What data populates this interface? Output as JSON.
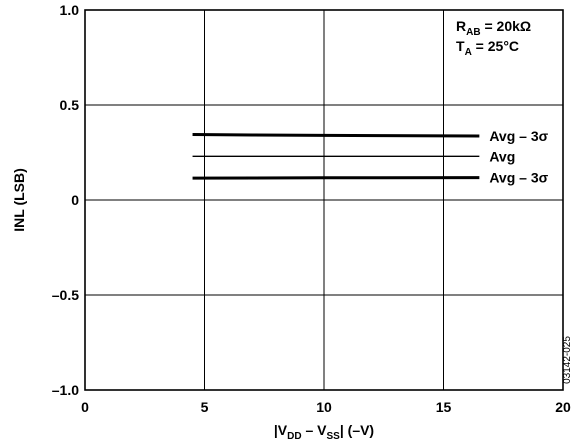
{
  "chart_data": {
    "type": "line",
    "title": "",
    "xlabel": {
      "pre": "|V",
      "sub1": "DD",
      "mid": " – V",
      "sub2": "SS",
      "post": "| (–V)"
    },
    "ylabel": "INL (LSB)",
    "xlim": [
      0,
      20
    ],
    "ylim": [
      -1.0,
      1.0
    ],
    "x_ticks": [
      0,
      5,
      10,
      15,
      20
    ],
    "x_tick_labels": [
      "0",
      "5",
      "10",
      "15",
      "20"
    ],
    "y_ticks": [
      -1.0,
      -0.5,
      0,
      0.5,
      1.0
    ],
    "y_tick_labels": [
      "–1.0",
      "–0.5",
      "0",
      "0.5",
      "1.0"
    ],
    "grid": true,
    "series": [
      {
        "name": "Avg – 3σ",
        "style": "thick",
        "x": [
          4.5,
          7.0,
          10.0,
          12.5,
          16.5
        ],
        "y": [
          0.345,
          0.342,
          0.34,
          0.339,
          0.337
        ]
      },
      {
        "name": "Avg",
        "style": "thin",
        "x": [
          4.5,
          16.5
        ],
        "y": [
          0.23,
          0.23
        ]
      },
      {
        "name": "Avg – 3σ",
        "style": "thick",
        "x": [
          4.5,
          10.0,
          16.5
        ],
        "y": [
          0.115,
          0.117,
          0.118
        ]
      }
    ],
    "annotations": {
      "rab": {
        "pre": "R",
        "sub": "AB",
        "post": " = 20kΩ"
      },
      "ta": {
        "pre": "T",
        "sub": "A",
        "post": " = 25°C"
      }
    },
    "figure_id": "03142-025"
  }
}
